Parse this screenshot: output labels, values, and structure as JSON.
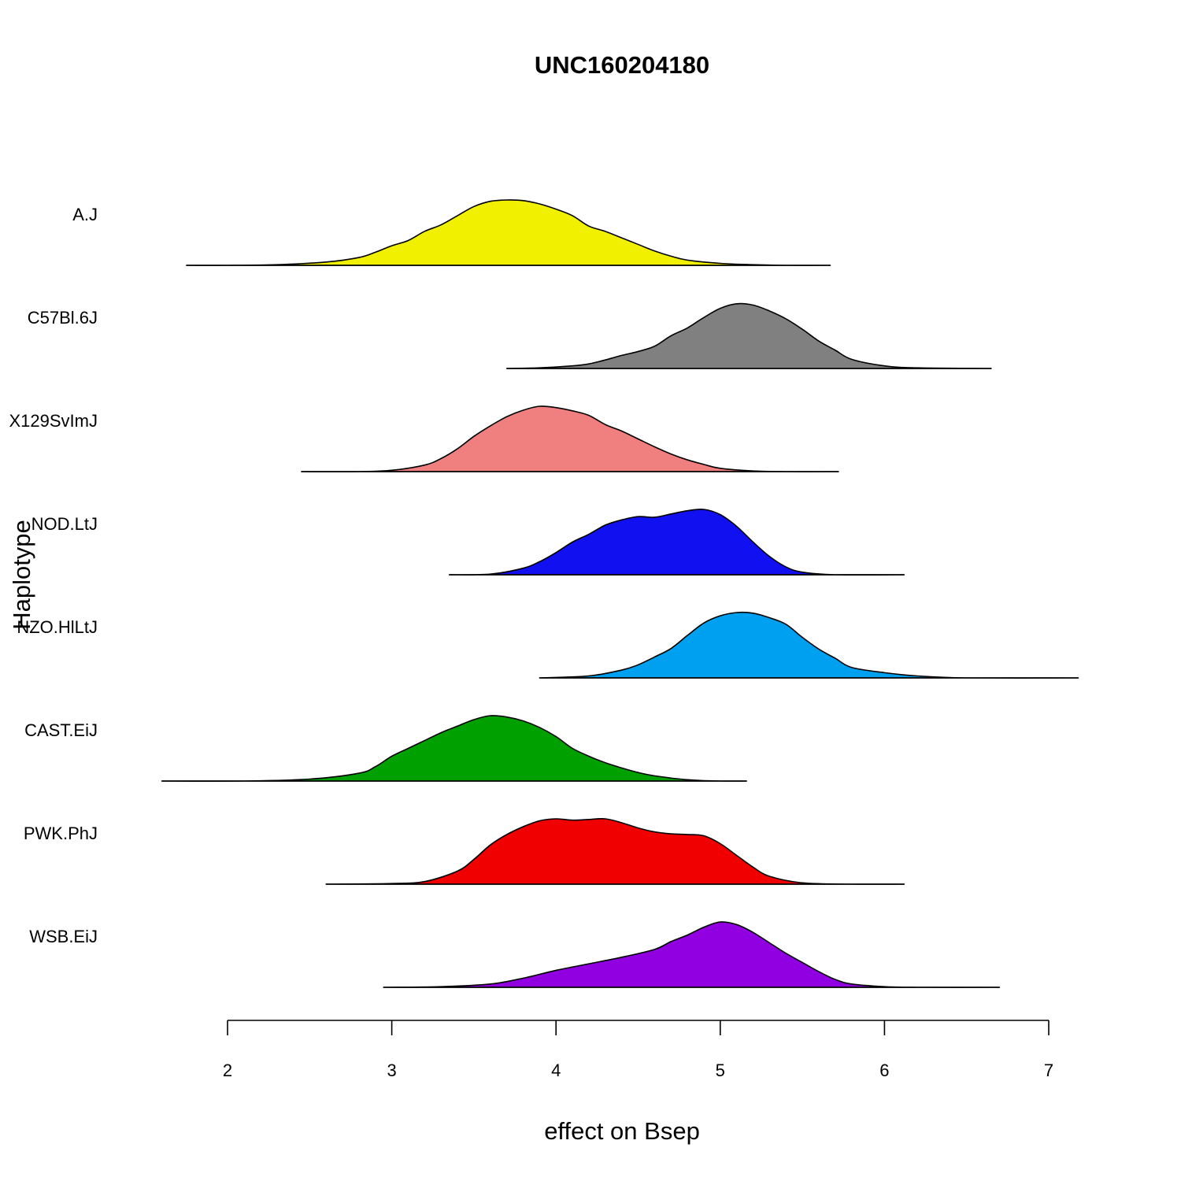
{
  "chart_data": {
    "type": "area",
    "subtype": "ridgeline-density",
    "title": "UNC160204180",
    "xlabel": "effect on Bsep",
    "ylabel": "Haplotype",
    "xlim": [
      2,
      7
    ],
    "xticks": [
      "2",
      "3",
      "4",
      "5",
      "6",
      "7"
    ],
    "grid": false,
    "legend": "none",
    "series": [
      {
        "name": "A.J",
        "color": "#F0F000",
        "x": [
          1.75,
          2.0,
          2.3,
          2.6,
          2.8,
          2.9,
          3.0,
          3.1,
          3.2,
          3.3,
          3.4,
          3.5,
          3.6,
          3.7,
          3.8,
          3.9,
          4.0,
          4.1,
          4.2,
          4.3,
          4.4,
          4.5,
          4.6,
          4.7,
          4.8,
          5.0,
          5.2,
          5.4,
          5.67
        ],
        "y": [
          0.0,
          0.0,
          0.01,
          0.05,
          0.12,
          0.2,
          0.3,
          0.38,
          0.52,
          0.62,
          0.76,
          0.9,
          0.98,
          1.0,
          0.99,
          0.94,
          0.86,
          0.76,
          0.6,
          0.52,
          0.42,
          0.32,
          0.22,
          0.14,
          0.08,
          0.03,
          0.01,
          0.0,
          0.0
        ]
      },
      {
        "name": "C57Bl.6J",
        "color": "#808080",
        "x": [
          3.7,
          3.9,
          4.1,
          4.2,
          4.3,
          4.4,
          4.5,
          4.6,
          4.7,
          4.8,
          4.9,
          5.0,
          5.1,
          5.2,
          5.3,
          5.4,
          5.5,
          5.6,
          5.7,
          5.8,
          6.0,
          6.2,
          6.65
        ],
        "y": [
          0.0,
          0.01,
          0.04,
          0.07,
          0.13,
          0.2,
          0.26,
          0.34,
          0.5,
          0.62,
          0.78,
          0.92,
          0.99,
          0.97,
          0.88,
          0.76,
          0.6,
          0.42,
          0.28,
          0.14,
          0.04,
          0.01,
          0.0
        ]
      },
      {
        "name": "X129SvImJ",
        "color": "#F08080",
        "x": [
          2.45,
          2.8,
          3.0,
          3.2,
          3.3,
          3.4,
          3.5,
          3.6,
          3.7,
          3.8,
          3.9,
          4.0,
          4.1,
          4.2,
          4.3,
          4.4,
          4.5,
          4.6,
          4.7,
          4.8,
          4.9,
          5.0,
          5.2,
          5.4,
          5.72
        ],
        "y": [
          0.0,
          0.0,
          0.02,
          0.1,
          0.2,
          0.35,
          0.54,
          0.7,
          0.84,
          0.94,
          1.0,
          0.98,
          0.93,
          0.86,
          0.72,
          0.62,
          0.5,
          0.38,
          0.27,
          0.18,
          0.11,
          0.05,
          0.01,
          0.0,
          0.0
        ]
      },
      {
        "name": "NOD.LtJ",
        "color": "#1010F0",
        "x": [
          3.35,
          3.6,
          3.8,
          3.9,
          4.0,
          4.1,
          4.2,
          4.3,
          4.4,
          4.5,
          4.6,
          4.7,
          4.8,
          4.9,
          5.0,
          5.1,
          5.2,
          5.3,
          5.4,
          5.5,
          5.7,
          6.12
        ],
        "y": [
          0.0,
          0.01,
          0.1,
          0.2,
          0.34,
          0.5,
          0.62,
          0.76,
          0.84,
          0.89,
          0.88,
          0.93,
          0.98,
          1.0,
          0.92,
          0.74,
          0.5,
          0.28,
          0.12,
          0.04,
          0.0,
          0.0
        ]
      },
      {
        "name": "NZO.HlLtJ",
        "color": "#00A0F0",
        "x": [
          3.9,
          4.2,
          4.4,
          4.5,
          4.6,
          4.7,
          4.8,
          4.9,
          5.0,
          5.1,
          5.2,
          5.3,
          5.4,
          5.5,
          5.6,
          5.7,
          5.8,
          6.0,
          6.2,
          6.5,
          7.18
        ],
        "y": [
          0.0,
          0.03,
          0.12,
          0.2,
          0.32,
          0.45,
          0.65,
          0.84,
          0.95,
          1.0,
          0.99,
          0.92,
          0.82,
          0.62,
          0.44,
          0.3,
          0.16,
          0.08,
          0.03,
          0.0,
          0.0
        ]
      },
      {
        "name": "CAST.EiJ",
        "color": "#00A000",
        "x": [
          1.6,
          2.1,
          2.5,
          2.8,
          2.9,
          3.0,
          3.1,
          3.2,
          3.3,
          3.4,
          3.5,
          3.6,
          3.7,
          3.8,
          3.9,
          4.0,
          4.1,
          4.2,
          4.3,
          4.4,
          4.5,
          4.6,
          4.8,
          5.0,
          5.16
        ],
        "y": [
          0.0,
          0.0,
          0.03,
          0.12,
          0.22,
          0.38,
          0.5,
          0.62,
          0.74,
          0.84,
          0.94,
          1.0,
          0.98,
          0.92,
          0.82,
          0.68,
          0.5,
          0.38,
          0.28,
          0.2,
          0.13,
          0.08,
          0.02,
          0.0,
          0.0
        ]
      },
      {
        "name": "PWK.PhJ",
        "color": "#F00000",
        "x": [
          2.6,
          3.0,
          3.2,
          3.4,
          3.5,
          3.6,
          3.7,
          3.8,
          3.9,
          4.0,
          4.1,
          4.2,
          4.3,
          4.4,
          4.5,
          4.6,
          4.7,
          4.8,
          4.9,
          5.0,
          5.1,
          5.2,
          5.3,
          5.5,
          5.8,
          6.12
        ],
        "y": [
          0.0,
          0.01,
          0.04,
          0.2,
          0.38,
          0.6,
          0.76,
          0.88,
          0.97,
          1.0,
          0.98,
          0.99,
          1.0,
          0.94,
          0.86,
          0.8,
          0.77,
          0.76,
          0.74,
          0.62,
          0.44,
          0.26,
          0.12,
          0.02,
          0.0,
          0.0
        ]
      },
      {
        "name": "WSB.EiJ",
        "color": "#9000E0",
        "x": [
          2.95,
          3.3,
          3.6,
          3.8,
          4.0,
          4.2,
          4.4,
          4.6,
          4.7,
          4.8,
          4.9,
          5.0,
          5.1,
          5.2,
          5.3,
          5.4,
          5.5,
          5.6,
          5.7,
          5.8,
          6.0,
          6.2,
          6.7
        ],
        "y": [
          0.0,
          0.01,
          0.05,
          0.14,
          0.26,
          0.36,
          0.46,
          0.58,
          0.7,
          0.8,
          0.92,
          1.0,
          0.96,
          0.84,
          0.68,
          0.52,
          0.38,
          0.24,
          0.12,
          0.05,
          0.01,
          0.0,
          0.0
        ]
      }
    ]
  }
}
